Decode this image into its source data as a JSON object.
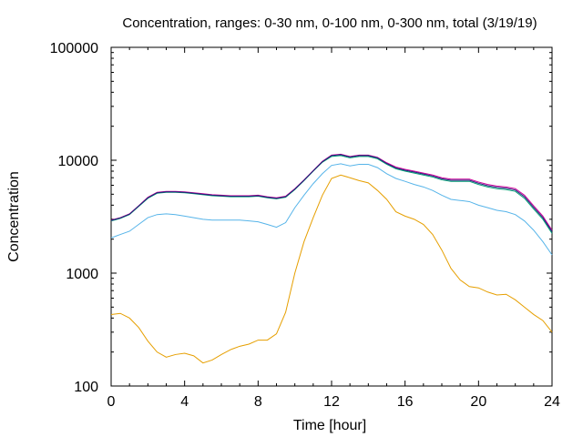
{
  "chart_data": {
    "type": "line",
    "title": "Concentration, ranges: 0-30 nm, 0-100 nm, 0-300 nm, total (3/19/19)",
    "xlabel": "Time [hour]",
    "ylabel": "Concentration",
    "xlim": [
      0,
      24
    ],
    "ylim": [
      100,
      100000
    ],
    "yscale": "log",
    "grid": false,
    "x_ticks": [
      "0",
      "4",
      "8",
      "12",
      "16",
      "20",
      "24"
    ],
    "y_ticks": [
      "100",
      "1000",
      "10000",
      "100000"
    ],
    "x_tick_values": [
      0,
      4,
      8,
      12,
      16,
      20,
      24
    ],
    "y_tick_values": [
      100,
      1000,
      10000,
      100000
    ],
    "series": [
      {
        "color": "#e69f00",
        "x": [
          0,
          0.5,
          1,
          1.5,
          2,
          2.5,
          3,
          3.5,
          4,
          4.5,
          5,
          5.5,
          6,
          6.5,
          7,
          7.5,
          8,
          8.5,
          9,
          9.5,
          10,
          10.5,
          11,
          11.5,
          12,
          12.5,
          13,
          13.5,
          14,
          14.5,
          15,
          15.5,
          16,
          16.5,
          17,
          17.5,
          18,
          18.5,
          19,
          19.5,
          20,
          20.5,
          21,
          21.5,
          22,
          22.5,
          23,
          23.5,
          24
        ],
        "y": [
          430,
          440,
          400,
          330,
          250,
          200,
          180,
          190,
          195,
          185,
          160,
          170,
          190,
          210,
          225,
          235,
          255,
          255,
          290,
          450,
          1000,
          1900,
          3100,
          4900,
          6900,
          7400,
          7000,
          6600,
          6300,
          5400,
          4500,
          3500,
          3200,
          3000,
          2700,
          2200,
          1600,
          1100,
          870,
          760,
          740,
          680,
          640,
          650,
          580,
          500,
          430,
          380,
          300
        ]
      },
      {
        "color": "#56b4e9",
        "x": [
          0,
          0.5,
          1,
          1.5,
          2,
          2.5,
          3,
          3.5,
          4,
          4.5,
          5,
          5.5,
          6,
          6.5,
          7,
          7.5,
          8,
          8.5,
          9,
          9.5,
          10,
          10.5,
          11,
          11.5,
          12,
          12.5,
          13,
          13.5,
          14,
          14.5,
          15,
          15.5,
          16,
          16.5,
          17,
          17.5,
          18,
          18.5,
          19,
          19.5,
          20,
          20.5,
          21,
          21.5,
          22,
          22.5,
          23,
          23.5,
          24
        ],
        "y": [
          2050,
          2200,
          2350,
          2700,
          3100,
          3300,
          3350,
          3300,
          3200,
          3100,
          3000,
          2950,
          2950,
          2950,
          2950,
          2900,
          2850,
          2700,
          2550,
          2800,
          3800,
          4900,
          6200,
          7600,
          9000,
          9300,
          8900,
          9200,
          9200,
          8600,
          7600,
          6900,
          6500,
          6100,
          5800,
          5400,
          4900,
          4500,
          4400,
          4300,
          4000,
          3800,
          3600,
          3500,
          3300,
          2900,
          2400,
          1900,
          1450
        ]
      },
      {
        "color": "#009e73",
        "x": [
          0,
          0.5,
          1,
          1.5,
          2,
          2.5,
          3,
          3.5,
          4,
          4.5,
          5,
          5.5,
          6,
          6.5,
          7,
          7.5,
          8,
          8.5,
          9,
          9.5,
          10,
          10.5,
          11,
          11.5,
          12,
          12.5,
          13,
          13.5,
          14,
          14.5,
          15,
          15.5,
          16,
          16.5,
          17,
          17.5,
          18,
          18.5,
          19,
          19.5,
          20,
          20.5,
          21,
          21.5,
          22,
          22.5,
          23,
          23.5,
          24
        ],
        "y": [
          2900,
          3050,
          3300,
          3900,
          4600,
          5100,
          5200,
          5200,
          5150,
          5050,
          4950,
          4850,
          4800,
          4750,
          4750,
          4750,
          4800,
          4650,
          4550,
          4700,
          5500,
          6600,
          8000,
          9600,
          10800,
          11000,
          10500,
          10800,
          10800,
          10300,
          9200,
          8400,
          8000,
          7700,
          7400,
          7100,
          6700,
          6500,
          6500,
          6500,
          6100,
          5800,
          5600,
          5500,
          5300,
          4600,
          3700,
          3000,
          2250
        ]
      },
      {
        "color": "#cc0099",
        "x": [
          0,
          0.5,
          1,
          1.5,
          2,
          2.5,
          3,
          3.5,
          4,
          4.5,
          5,
          5.5,
          6,
          6.5,
          7,
          7.5,
          8,
          8.5,
          9,
          9.5,
          10,
          10.5,
          11,
          11.5,
          12,
          12.5,
          13,
          13.5,
          14,
          14.5,
          15,
          15.5,
          16,
          16.5,
          17,
          17.5,
          18,
          18.5,
          19,
          19.5,
          20,
          20.5,
          21,
          21.5,
          22,
          22.5,
          23,
          23.5,
          24
        ],
        "y": [
          2950,
          3100,
          3350,
          3950,
          4700,
          5200,
          5300,
          5300,
          5250,
          5150,
          5050,
          4950,
          4900,
          4850,
          4850,
          4850,
          4900,
          4750,
          4650,
          4800,
          5600,
          6700,
          8100,
          9800,
          11100,
          11300,
          10800,
          11100,
          11100,
          10600,
          9500,
          8700,
          8300,
          8000,
          7700,
          7400,
          7000,
          6800,
          6800,
          6800,
          6400,
          6100,
          5900,
          5800,
          5600,
          4900,
          3950,
          3200,
          2400
        ]
      },
      {
        "color": "#1f1f7a",
        "x": [
          0,
          0.5,
          1,
          1.5,
          2,
          2.5,
          3,
          3.5,
          4,
          4.5,
          5,
          5.5,
          6,
          6.5,
          7,
          7.5,
          8,
          8.5,
          9,
          9.5,
          10,
          10.5,
          11,
          11.5,
          12,
          12.5,
          13,
          13.5,
          14,
          14.5,
          15,
          15.5,
          16,
          16.5,
          17,
          17.5,
          18,
          18.5,
          19,
          19.5,
          20,
          20.5,
          21,
          21.5,
          22,
          22.5,
          23,
          23.5,
          24
        ],
        "y": [
          2930,
          3080,
          3330,
          3930,
          4650,
          5150,
          5250,
          5250,
          5200,
          5100,
          5000,
          4900,
          4850,
          4800,
          4800,
          4800,
          4850,
          4700,
          4600,
          4750,
          5550,
          6650,
          8050,
          9700,
          11000,
          11200,
          10700,
          11000,
          11000,
          10500,
          9350,
          8550,
          8150,
          7850,
          7550,
          7250,
          6850,
          6650,
          6650,
          6650,
          6250,
          5950,
          5750,
          5650,
          5450,
          4750,
          3820,
          3100,
          2330
        ]
      }
    ]
  }
}
